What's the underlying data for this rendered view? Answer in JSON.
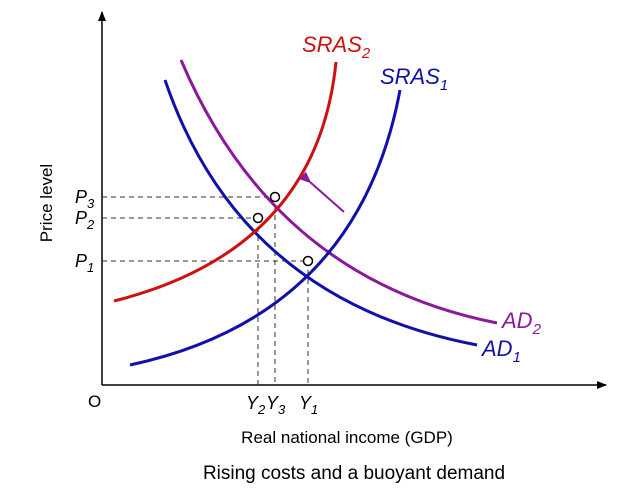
{
  "axes": {
    "y_label": "Price level",
    "x_label": "Real national income (GDP)",
    "origin": "O"
  },
  "caption": "Rising costs and a buoyant demand",
  "curves": {
    "sras2": {
      "base": "SRAS",
      "sub": "2",
      "color": "#cc1111"
    },
    "sras1": {
      "base": "SRAS",
      "sub": "1",
      "color": "#1111aa"
    },
    "ad2": {
      "base": "AD",
      "sub": "2",
      "color": "#8b1a9a"
    },
    "ad1": {
      "base": "AD",
      "sub": "1",
      "color": "#1111aa"
    }
  },
  "price_ticks": [
    {
      "base": "P",
      "sub": "3"
    },
    {
      "base": "P",
      "sub": "2"
    },
    {
      "base": "P",
      "sub": "1"
    }
  ],
  "income_ticks": [
    {
      "base": "Y",
      "sub": "2"
    },
    {
      "base": "Y",
      "sub": "3"
    },
    {
      "base": "Y",
      "sub": "1"
    }
  ],
  "colors": {
    "axis": "#000000",
    "guide": "#333333",
    "shift_arrow": "#8b1a9a"
  }
}
